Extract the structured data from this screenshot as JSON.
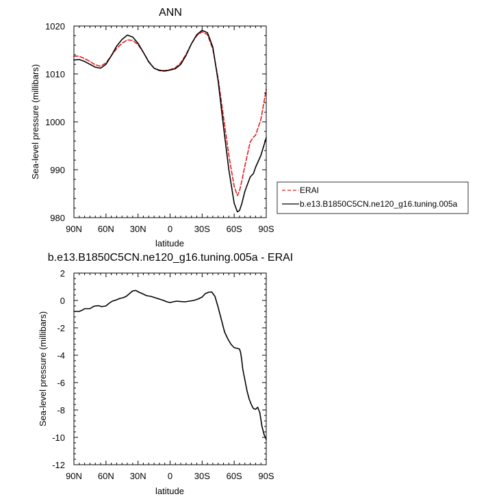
{
  "chart_data": [
    {
      "type": "line",
      "title": "ANN",
      "xlabel": "latitude",
      "ylabel": "Sea-level pressure (millibars)",
      "xlim": [
        90,
        -90
      ],
      "ylim": [
        980,
        1020
      ],
      "xticks": [
        90,
        60,
        30,
        0,
        -30,
        -60,
        -90
      ],
      "xtick_labels": [
        "90N",
        "60N",
        "30N",
        "0",
        "30S",
        "60S",
        "90S"
      ],
      "yticks": [
        980,
        990,
        1000,
        1010,
        1020
      ],
      "ytick_labels": [
        "980",
        "990",
        "1000",
        "1010",
        "1020"
      ],
      "grid": false,
      "legend": "right",
      "series": [
        {
          "name": "ERAI",
          "color": "#e31a1c",
          "dash": "dashed",
          "x": [
            90,
            85,
            80,
            75,
            70,
            65,
            60,
            55,
            50,
            45,
            40,
            35,
            30,
            25,
            20,
            15,
            10,
            5,
            0,
            -5,
            -10,
            -15,
            -20,
            -25,
            -30,
            -35,
            -40,
            -45,
            -50,
            -55,
            -60,
            -63,
            -65,
            -67,
            -70,
            -75,
            -78,
            -80,
            -85,
            -90
          ],
          "y": [
            1013.7,
            1013.7,
            1013.2,
            1012.6,
            1011.9,
            1011.6,
            1012.3,
            1013.8,
            1015.3,
            1016.4,
            1017.1,
            1017.0,
            1016.1,
            1014.5,
            1012.6,
            1011.2,
            1010.8,
            1010.7,
            1010.9,
            1011.3,
            1012.3,
            1014.1,
            1016.3,
            1018.0,
            1018.8,
            1018.2,
            1015.2,
            1009.0,
            1001.0,
            993.0,
            986.5,
            984.6,
            985.6,
            987.5,
            990.8,
            995.8,
            996.8,
            997.2,
            1000.5,
            1006.8
          ]
        },
        {
          "name": "b.e13.B1850C5CN.ne120_g16.tuning.005a",
          "color": "#000000",
          "dash": "solid",
          "x": [
            90,
            85,
            80,
            75,
            70,
            65,
            60,
            55,
            50,
            45,
            40,
            35,
            30,
            25,
            20,
            15,
            10,
            5,
            0,
            -5,
            -10,
            -15,
            -20,
            -25,
            -30,
            -35,
            -40,
            -45,
            -50,
            -55,
            -60,
            -63,
            -65,
            -67,
            -70,
            -75,
            -78,
            -80,
            -85,
            -90
          ],
          "y": [
            1012.9,
            1013.0,
            1012.6,
            1012.0,
            1011.4,
            1011.2,
            1012.0,
            1013.8,
            1015.8,
            1017.2,
            1018.1,
            1017.7,
            1016.4,
            1014.5,
            1012.5,
            1011.2,
            1010.7,
            1010.6,
            1010.8,
            1011.1,
            1012.0,
            1013.9,
            1016.3,
            1018.2,
            1019.1,
            1018.6,
            1015.6,
            1008.5,
            999.0,
            990.0,
            983.0,
            981.2,
            981.5,
            982.8,
            985.5,
            988.5,
            989.2,
            990.5,
            993.0,
            996.7
          ]
        }
      ]
    },
    {
      "type": "line",
      "title": "b.e13.B1850C5CN.ne120_g16.tuning.005a - ERAI",
      "xlabel": "latitude",
      "ylabel": "Sea-level pressure (millibars)",
      "xlim": [
        90,
        -90
      ],
      "ylim": [
        -12,
        2
      ],
      "xticks": [
        90,
        60,
        30,
        0,
        -30,
        -60,
        -90
      ],
      "xtick_labels": [
        "90N",
        "60N",
        "30N",
        "0",
        "30S",
        "60S",
        "90S"
      ],
      "yticks": [
        -12,
        -10,
        -8,
        -6,
        -4,
        -2,
        0,
        2
      ],
      "ytick_labels": [
        "-12",
        "-10",
        "-8",
        "-6",
        "-4",
        "-2",
        "0",
        "2"
      ],
      "grid": false,
      "series": [
        {
          "color": "#000000",
          "dash": "solid",
          "x": [
            90,
            85,
            82,
            80,
            78,
            75,
            72,
            70,
            67,
            64,
            60,
            57,
            54,
            50,
            47,
            44,
            41,
            38,
            35,
            32,
            29,
            26,
            22,
            18,
            14,
            10,
            6,
            3,
            0,
            -3,
            -6,
            -10,
            -14,
            -18,
            -22,
            -26,
            -30,
            -33,
            -36,
            -39,
            -42,
            -45,
            -48,
            -51,
            -54,
            -57,
            -60,
            -63,
            -65,
            -66,
            -67,
            -68,
            -70,
            -72,
            -74,
            -76,
            -78,
            -80,
            -82,
            -84,
            -86,
            -88,
            -90
          ],
          "y": [
            -0.8,
            -0.8,
            -0.7,
            -0.6,
            -0.6,
            -0.6,
            -0.45,
            -0.4,
            -0.38,
            -0.45,
            -0.4,
            -0.2,
            -0.05,
            0.05,
            0.15,
            0.2,
            0.3,
            0.5,
            0.7,
            0.73,
            0.6,
            0.5,
            0.35,
            0.3,
            0.2,
            0.1,
            0.0,
            -0.1,
            -0.15,
            -0.1,
            -0.05,
            -0.08,
            -0.1,
            -0.05,
            0.0,
            0.1,
            0.25,
            0.5,
            0.6,
            0.62,
            0.3,
            -0.5,
            -1.4,
            -2.3,
            -2.8,
            -3.2,
            -3.45,
            -3.5,
            -3.55,
            -3.8,
            -4.3,
            -5.0,
            -5.8,
            -6.6,
            -7.2,
            -7.6,
            -7.9,
            -7.95,
            -7.8,
            -8.2,
            -9.2,
            -9.8,
            -10.15
          ]
        }
      ]
    }
  ]
}
